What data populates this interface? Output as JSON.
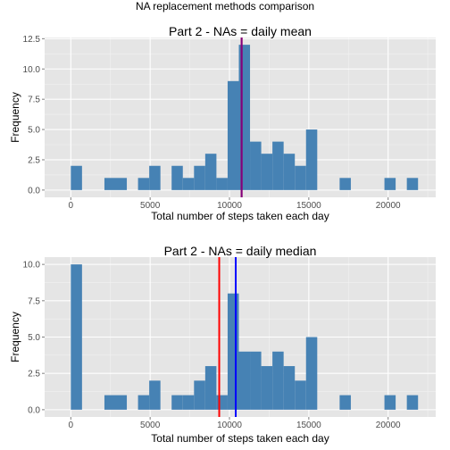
{
  "page_title": "NA replacement methods comparison",
  "colors": {
    "panel_bg": "#e5e5e5",
    "grid_major": "#ffffff",
    "grid_minor": "#f2f2f2",
    "bar_fill": "#4682b4",
    "tick_text": "#4d4d4d",
    "mean_line_color": "#ff0000",
    "median_line_color": "#0000ff",
    "overlap_line_color": "#7f007f"
  },
  "chart_data": [
    {
      "type": "bar",
      "subtype": "histogram",
      "title": "Part 2 - NAs = daily mean",
      "xlabel": "Total number of steps taken each day",
      "ylabel": "Frequency",
      "xlim": [
        -1650,
        23000
      ],
      "ylim": [
        -0.6,
        12.6
      ],
      "x_ticks": [
        0,
        5000,
        10000,
        15000,
        20000
      ],
      "y_ticks": [
        0,
        2.5,
        5,
        7.5,
        10,
        12.5
      ],
      "y_tick_labels": [
        "0.0",
        "2.5",
        "5.0",
        "7.5",
        "10.0",
        "12.5"
      ],
      "grid": true,
      "bin_width": 706,
      "bin_centers": [
        353,
        1059,
        1765,
        2471,
        3177,
        3883,
        4589,
        5295,
        6001,
        6707,
        7413,
        8119,
        8825,
        9531,
        10237,
        10943,
        11649,
        12355,
        13061,
        13767,
        14473,
        15179,
        15885,
        16591,
        17297,
        18003,
        18709,
        19415,
        20121,
        20827,
        21533
      ],
      "values": [
        2,
        0,
        0,
        1,
        1,
        0,
        1,
        2,
        0,
        2,
        1,
        2,
        3,
        1,
        9,
        12,
        4,
        3,
        4,
        3,
        2,
        5,
        0,
        0,
        1,
        0,
        0,
        0,
        1,
        0,
        1
      ],
      "vlines": [
        {
          "stat": "mean",
          "x": 10766,
          "color": "#ff0000"
        },
        {
          "stat": "median",
          "x": 10766,
          "color": "#7f007f"
        }
      ]
    },
    {
      "type": "bar",
      "subtype": "histogram",
      "title": "Part 2 - NAs = daily median",
      "xlabel": "Total number of steps taken each day",
      "ylabel": "Frequency",
      "xlim": [
        -1650,
        23000
      ],
      "ylim": [
        -0.5,
        10.5
      ],
      "x_ticks": [
        0,
        5000,
        10000,
        15000,
        20000
      ],
      "y_ticks": [
        0,
        2.5,
        5,
        7.5,
        10
      ],
      "y_tick_labels": [
        "0.0",
        "2.5",
        "5.0",
        "7.5",
        "10.0"
      ],
      "grid": true,
      "bin_width": 706,
      "bin_centers": [
        353,
        1059,
        1765,
        2471,
        3177,
        3883,
        4589,
        5295,
        6001,
        6707,
        7413,
        8119,
        8825,
        9531,
        10237,
        10943,
        11649,
        12355,
        13061,
        13767,
        14473,
        15179,
        15885,
        16591,
        17297,
        18003,
        18709,
        19415,
        20121,
        20827,
        21533
      ],
      "values": [
        10,
        0,
        0,
        1,
        1,
        0,
        1,
        2,
        0,
        1,
        1,
        2,
        3,
        1,
        8,
        4,
        4,
        3,
        4,
        3,
        2,
        5,
        0,
        0,
        1,
        0,
        0,
        0,
        1,
        0,
        1
      ],
      "vlines": [
        {
          "stat": "mean",
          "x": 9354,
          "color": "#ff0000"
        },
        {
          "stat": "median",
          "x": 10395,
          "color": "#0000ff"
        }
      ]
    }
  ]
}
